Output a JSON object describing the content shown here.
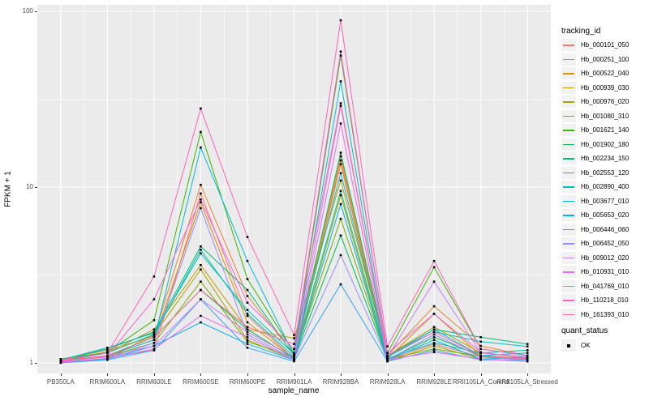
{
  "figure": {
    "x_axis_title": "sample_name",
    "y_axis_title": "FPKM + 1"
  },
  "legend": {
    "tracking_title": "tracking_id",
    "quant_title": "quant_status",
    "quant_ok_label": "OK"
  },
  "colors": {
    "panel_background": "#EBEBEB",
    "grid_line": "#FFFFFF",
    "tick_label": "#4D4D4D",
    "point": "#000000"
  },
  "chart_data": {
    "type": "line",
    "title": "",
    "xlabel": "sample_name",
    "ylabel": "FPKM + 1",
    "y_scale": "log10",
    "ylim": [
      0.87,
      110
    ],
    "y_major_ticks": [
      1,
      10,
      100
    ],
    "y_minor_ticks": [
      3.1623,
      31.623
    ],
    "grid": true,
    "legend_position": "right",
    "point_marker": "black-square",
    "categories": [
      "PB350LA",
      "RRIM600LA",
      "RRIM600LE",
      "RRIM600SE",
      "RRIM600PE",
      "RRIM901LA",
      "RRIM928BA",
      "RRIM928LA",
      "RRIM928LE",
      "RRII105LA_Control",
      "RRII105LA_Stressed"
    ],
    "series": [
      {
        "name": "Hb_000101_050",
        "color": "#F8766D",
        "values": [
          1.02,
          1.08,
          1.18,
          9.2,
          1.85,
          1.05,
          13.5,
          1.04,
          1.28,
          1.08,
          1.04
        ]
      },
      {
        "name": "Hb_000251_100",
        "color": "#EA8331",
        "values": [
          1.05,
          1.18,
          1.42,
          10.3,
          2.4,
          1.12,
          15.0,
          1.1,
          2.1,
          1.25,
          1.1
        ]
      },
      {
        "name": "Hb_000522_040",
        "color": "#D89000",
        "values": [
          1.02,
          1.1,
          1.35,
          8.2,
          1.7,
          1.06,
          14.2,
          1.06,
          1.9,
          1.1,
          1.06
        ]
      },
      {
        "name": "Hb_000939_030",
        "color": "#C09B00",
        "values": [
          1.03,
          1.14,
          1.55,
          3.6,
          1.55,
          1.38,
          10.9,
          1.1,
          1.6,
          1.14,
          1.08
        ]
      },
      {
        "name": "Hb_000976_020",
        "color": "#A3A500",
        "values": [
          1.01,
          1.06,
          1.45,
          3.4,
          1.35,
          1.04,
          9.0,
          1.02,
          1.25,
          1.05,
          1.02
        ]
      },
      {
        "name": "Hb_001080_310",
        "color": "#7CAE00",
        "values": [
          1.02,
          1.09,
          1.3,
          2.9,
          1.32,
          1.08,
          6.6,
          1.05,
          1.2,
          1.09,
          1.05
        ]
      },
      {
        "name": "Hb_001621_140",
        "color": "#39B600",
        "values": [
          1.05,
          1.15,
          1.75,
          20.6,
          3.0,
          1.14,
          56.0,
          1.14,
          3.5,
          1.2,
          1.1
        ]
      },
      {
        "name": "Hb_001902_180",
        "color": "#00BB4E",
        "values": [
          1.02,
          1.1,
          1.4,
          2.6,
          1.55,
          1.06,
          5.3,
          1.05,
          1.4,
          1.1,
          1.05
        ]
      },
      {
        "name": "Hb_002234_150",
        "color": "#00BF7D",
        "values": [
          1.04,
          1.2,
          1.5,
          4.6,
          2.6,
          1.1,
          15.7,
          1.1,
          1.55,
          1.4,
          1.28
        ]
      },
      {
        "name": "Hb_002553_120",
        "color": "#00C1A3",
        "values": [
          1.02,
          1.14,
          1.45,
          4.4,
          1.9,
          1.08,
          9.5,
          1.06,
          1.3,
          1.14,
          1.18
        ]
      },
      {
        "name": "Hb_002890_400",
        "color": "#00BFC4",
        "values": [
          1.04,
          1.22,
          1.48,
          4.2,
          2.0,
          1.12,
          12.0,
          1.08,
          1.5,
          1.32,
          1.24
        ]
      },
      {
        "name": "Hb_003677_010",
        "color": "#00BAE0",
        "values": [
          1.02,
          1.1,
          1.35,
          16.8,
          3.8,
          1.1,
          40.0,
          1.08,
          1.55,
          1.1,
          1.14
        ]
      },
      {
        "name": "Hb_005653_020",
        "color": "#00B0F6",
        "values": [
          1.01,
          1.05,
          1.25,
          1.7,
          1.28,
          1.04,
          8.0,
          1.04,
          1.35,
          1.05,
          1.08
        ]
      },
      {
        "name": "Hb_006446_060",
        "color": "#35A2FF",
        "values": [
          1.0,
          1.04,
          1.18,
          2.3,
          1.22,
          1.02,
          2.8,
          1.02,
          1.18,
          1.04,
          1.04
        ]
      },
      {
        "name": "Hb_006452_050",
        "color": "#9590FF",
        "values": [
          1.01,
          1.06,
          1.3,
          7.6,
          1.45,
          1.05,
          4.1,
          1.04,
          1.45,
          1.08,
          1.05
        ]
      },
      {
        "name": "Hb_009012_020",
        "color": "#C77CFF",
        "values": [
          1.02,
          1.09,
          1.25,
          2.3,
          1.5,
          1.08,
          29.0,
          1.08,
          2.9,
          1.14,
          1.08
        ]
      },
      {
        "name": "Hb_010931_010",
        "color": "#E76BF3",
        "values": [
          1.01,
          1.06,
          1.2,
          1.85,
          1.4,
          1.04,
          23.0,
          1.04,
          1.15,
          1.05,
          1.02
        ]
      },
      {
        "name": "Hb_041769_010",
        "color": "#FA62DB",
        "values": [
          1.03,
          1.1,
          2.3,
          8.5,
          2.2,
          1.2,
          59.0,
          1.14,
          1.9,
          1.15,
          1.06
        ]
      },
      {
        "name": "Hb_110218_010",
        "color": "#FF62BC",
        "values": [
          1.04,
          1.14,
          3.1,
          28.0,
          5.2,
          1.44,
          89.0,
          1.24,
          3.8,
          1.2,
          1.1
        ]
      },
      {
        "name": "Hb_161393_010",
        "color": "#FF6A98",
        "values": [
          1.02,
          1.1,
          1.4,
          2.6,
          1.6,
          1.28,
          30.0,
          1.1,
          1.5,
          1.1,
          1.05
        ]
      }
    ]
  }
}
